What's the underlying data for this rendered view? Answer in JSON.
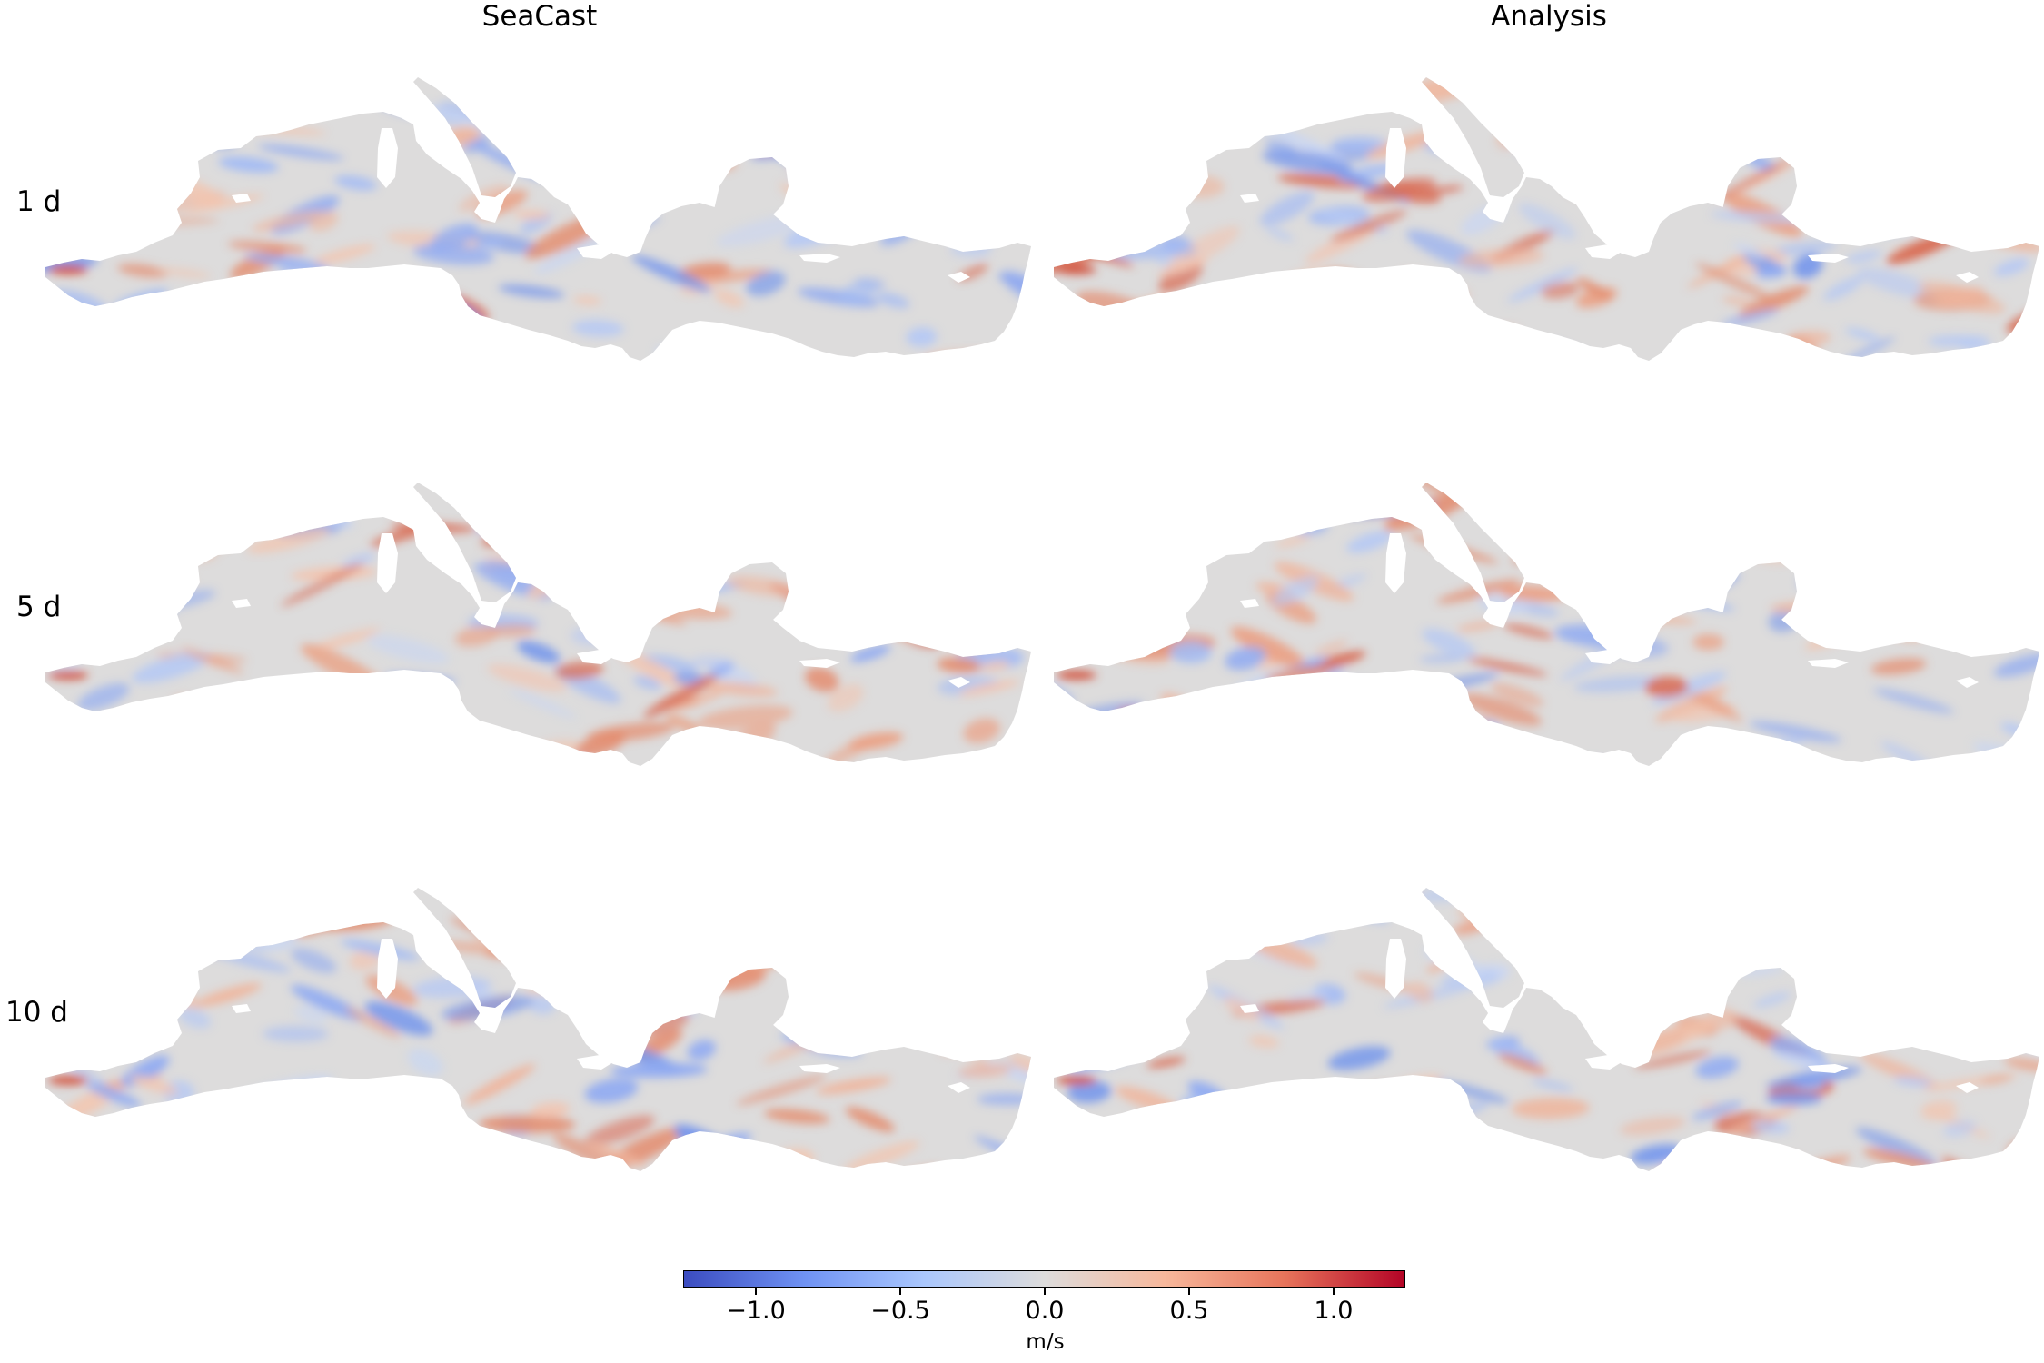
{
  "columns": [
    "SeaCast",
    "Analysis"
  ],
  "rows": [
    "1 d",
    "5 d",
    "10 d"
  ],
  "colorbar": {
    "unit": "m/s",
    "min": -1.25,
    "max": 1.25,
    "ticks": [
      "−1.0",
      "−0.5",
      "0.0",
      "0.5",
      "1.0"
    ],
    "tick_values": [
      -1.0,
      -0.5,
      0.0,
      0.5,
      1.0
    ],
    "colormap": "coolwarm",
    "colors": [
      "#3b4cc0",
      "#6f92f3",
      "#aac7fd",
      "#dddcdc",
      "#f7b89c",
      "#e7745b",
      "#b40426"
    ]
  },
  "land_color": "#ffffff",
  "sea_base_color": "#dddcdc"
}
